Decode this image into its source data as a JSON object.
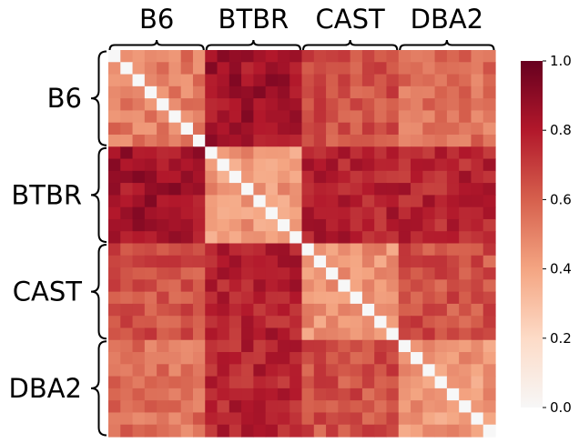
{
  "chart_data": {
    "type": "heatmap",
    "title": "",
    "groups": [
      "B6",
      "BTBR",
      "CAST",
      "DBA2"
    ],
    "samples_per_group": 8,
    "group_mean_correlation": [
      [
        0.52,
        0.84,
        0.64,
        0.55
      ],
      [
        0.84,
        0.44,
        0.78,
        0.77
      ],
      [
        0.64,
        0.78,
        0.46,
        0.64
      ],
      [
        0.55,
        0.77,
        0.64,
        0.44
      ]
    ],
    "diagonal_value": 0.0,
    "colorbar": {
      "min": 0.0,
      "max": 1.0,
      "ticks": [
        "0.0",
        "0.2",
        "0.4",
        "0.6",
        "0.8",
        "1.0"
      ]
    },
    "colormap": {
      "stops": [
        "#f7f7f7",
        "#fddbc7",
        "#f4a582",
        "#d6604d",
        "#b2182b",
        "#67001f"
      ]
    }
  }
}
